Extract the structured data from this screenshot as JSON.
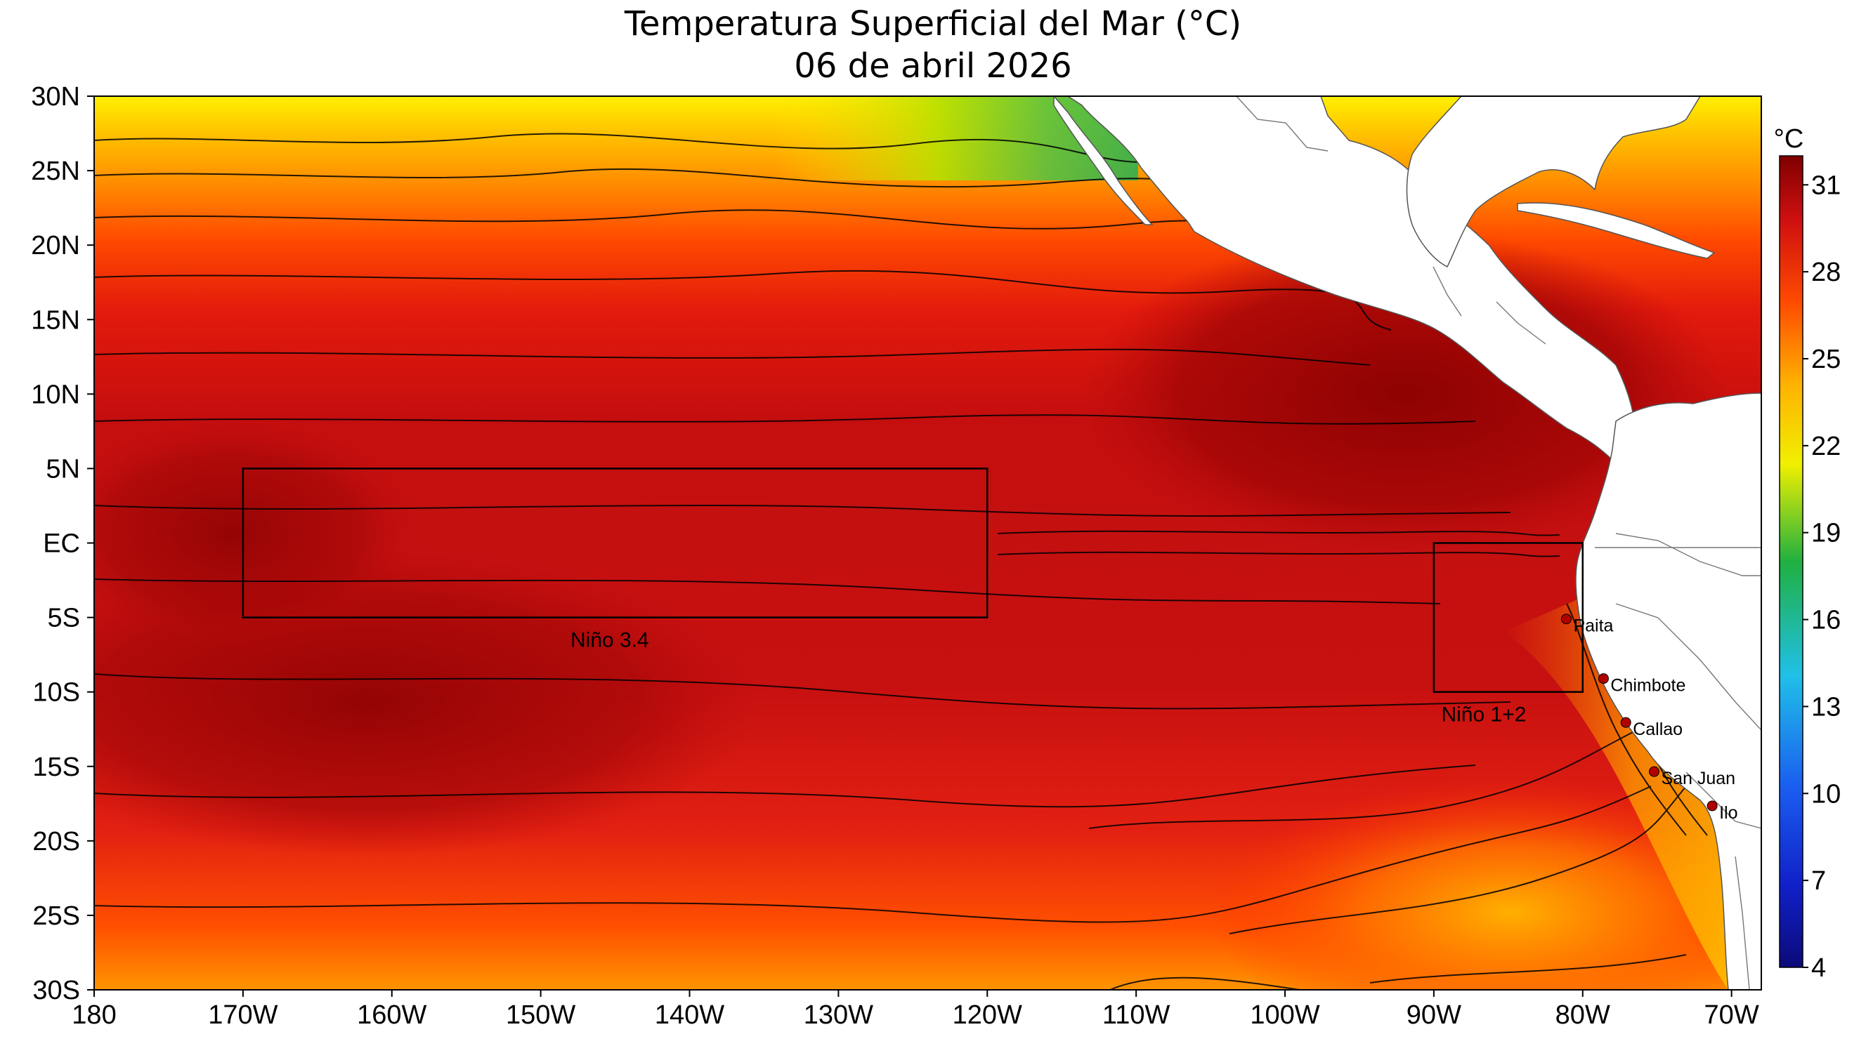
{
  "title": {
    "line1": "Temperatura Superficial del Mar (°C)",
    "line2": "06 de abril 2026"
  },
  "map": {
    "lon_range": [
      -180,
      -68
    ],
    "lat_range": [
      -30,
      30
    ],
    "lat_ticks": [
      {
        "value": 30,
        "label": "30N"
      },
      {
        "value": 25,
        "label": "25N"
      },
      {
        "value": 20,
        "label": "20N"
      },
      {
        "value": 15,
        "label": "15N"
      },
      {
        "value": 10,
        "label": "10N"
      },
      {
        "value": 5,
        "label": "5N"
      },
      {
        "value": 0,
        "label": "EC"
      },
      {
        "value": -5,
        "label": "5S"
      },
      {
        "value": -10,
        "label": "10S"
      },
      {
        "value": -15,
        "label": "15S"
      },
      {
        "value": -20,
        "label": "20S"
      },
      {
        "value": -25,
        "label": "25S"
      },
      {
        "value": -30,
        "label": "30S"
      }
    ],
    "lon_ticks": [
      {
        "value": -180,
        "label": "180"
      },
      {
        "value": -170,
        "label": "170W"
      },
      {
        "value": -160,
        "label": "160W"
      },
      {
        "value": -150,
        "label": "150W"
      },
      {
        "value": -140,
        "label": "140W"
      },
      {
        "value": -130,
        "label": "130W"
      },
      {
        "value": -120,
        "label": "120W"
      },
      {
        "value": -110,
        "label": "110W"
      },
      {
        "value": -100,
        "label": "100W"
      },
      {
        "value": -90,
        "label": "90W"
      },
      {
        "value": -80,
        "label": "80W"
      },
      {
        "value": -70,
        "label": "70W"
      }
    ],
    "regions": [
      {
        "name": "Niño 3.4",
        "lon": [
          -170,
          -120
        ],
        "lat": [
          -5,
          5
        ],
        "label_lon": -148,
        "label_lat": -6.5
      },
      {
        "name": "Niño 1+2",
        "lon": [
          -90,
          -80
        ],
        "lat": [
          -10,
          0
        ],
        "label_lon": -89.5,
        "label_lat": -11.5
      }
    ],
    "ports": [
      {
        "name": "Paita",
        "lon": -81.1,
        "lat": -5.1
      },
      {
        "name": "Chimbote",
        "lon": -78.6,
        "lat": -9.1
      },
      {
        "name": "Callao",
        "lon": -77.1,
        "lat": -12.05
      },
      {
        "name": "San Juan",
        "lon": -75.2,
        "lat": -15.35
      },
      {
        "name": "Ilo",
        "lon": -71.3,
        "lat": -17.65
      }
    ],
    "colors": {
      "warmest": "#8b0000",
      "warm": "#cc1010",
      "red": "#e81e0a",
      "orange": "#ff7a00",
      "yellow": "#ffe000",
      "green": "#36b14a",
      "cyan": "#22bbee",
      "blue": "#1020b0",
      "land": "#ffffff",
      "port": "#b00000"
    }
  },
  "colorbar": {
    "unit": "°C",
    "ticks": [
      {
        "value": 4,
        "label": "4"
      },
      {
        "value": 7,
        "label": "7"
      },
      {
        "value": 10,
        "label": "10"
      },
      {
        "value": 13,
        "label": "13"
      },
      {
        "value": 16,
        "label": "16"
      },
      {
        "value": 19,
        "label": "19"
      },
      {
        "value": 22,
        "label": "22"
      },
      {
        "value": 25,
        "label": "25"
      },
      {
        "value": 28,
        "label": "28"
      },
      {
        "value": 31,
        "label": "31"
      }
    ],
    "range": [
      4,
      32
    ]
  }
}
